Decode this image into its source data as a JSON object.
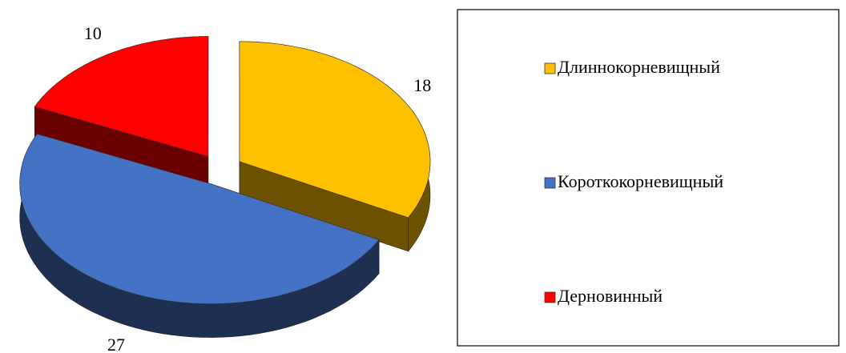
{
  "chart_data": {
    "type": "pie",
    "categories": [
      "Длиннокорневищный",
      "Короткокорневищный",
      "Дерновинный"
    ],
    "values": [
      18,
      27,
      10
    ],
    "colors": [
      "#FFC000",
      "#4472C4",
      "#FF0000"
    ],
    "legend": "right"
  }
}
